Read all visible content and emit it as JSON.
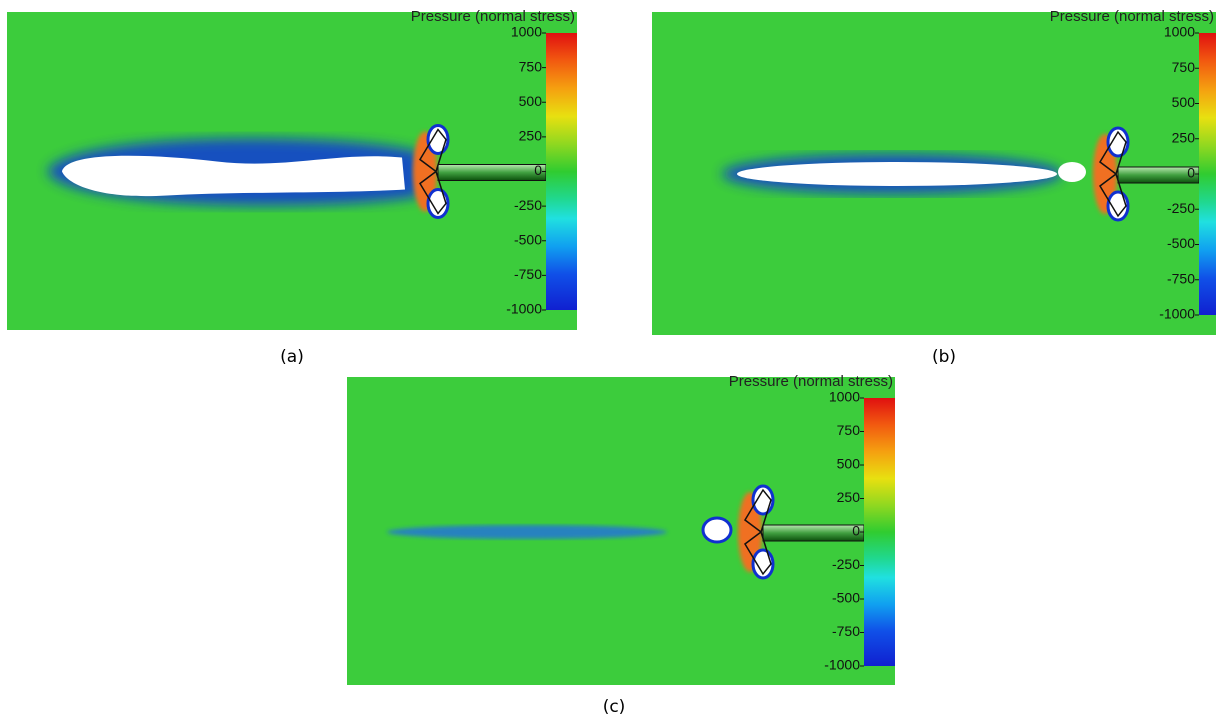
{
  "panels": [
    {
      "colorbar": {
        "title": "Pressure (normal stress)",
        "ticks": [
          1000,
          750,
          500,
          250,
          0,
          -250,
          -500,
          -750,
          -1000
        ]
      },
      "caption": "(a)"
    },
    {
      "colorbar": {
        "title": "Pressure (normal stress)",
        "ticks": [
          1000,
          750,
          500,
          250,
          0,
          -250,
          -500,
          -750,
          -1000
        ]
      },
      "caption": "(b)"
    },
    {
      "colorbar": {
        "title": "Pressure (normal stress)",
        "ticks": [
          1000,
          750,
          500,
          250,
          0,
          -250,
          -500,
          -750,
          -1000
        ]
      },
      "caption": "(c)"
    }
  ]
}
